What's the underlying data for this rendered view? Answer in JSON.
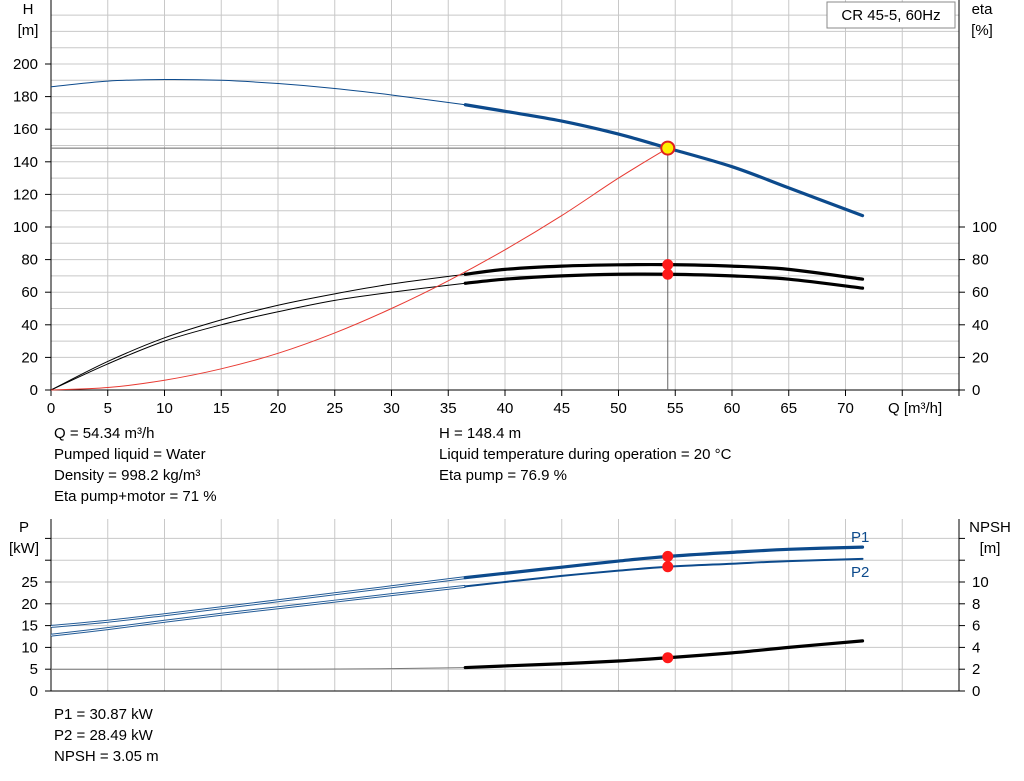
{
  "chart_data": [
    {
      "type": "line",
      "title": "CR 45-5, 60Hz",
      "xlabel": "Q [m³/h]",
      "xlim": [
        0,
        80
      ],
      "x_ticks": [
        0,
        5,
        10,
        15,
        20,
        25,
        30,
        35,
        40,
        45,
        50,
        55,
        60,
        65,
        70
      ],
      "left_axis": {
        "label_line1": "H",
        "label_line2": "[m]",
        "lim": [
          0,
          200
        ],
        "ticks": [
          0,
          20,
          40,
          60,
          80,
          100,
          120,
          140,
          160,
          180,
          200
        ]
      },
      "right_axis": {
        "label_line1": "eta",
        "label_line2": "[%]",
        "lim": [
          0,
          100
        ],
        "ticks": [
          0,
          20,
          40,
          60,
          80,
          100
        ]
      },
      "grid": true,
      "operating_point": {
        "Q": 54.34,
        "H": 148.4,
        "eta_pump": 76.9,
        "eta_total": 71
      },
      "series": [
        {
          "key": "H",
          "axis": "left",
          "color": "#0c4a8c",
          "x": [
            0,
            5,
            10,
            15,
            20,
            25,
            30,
            36.5,
            40,
            45,
            50,
            54.34,
            60,
            65,
            71.5
          ],
          "y": [
            186,
            189.5,
            190.5,
            190,
            188,
            185,
            181,
            175,
            171,
            165,
            157,
            148.4,
            137,
            124,
            107
          ]
        },
        {
          "key": "eta_pump",
          "axis": "right",
          "color": "#000000",
          "x": [
            0,
            5,
            10,
            15,
            20,
            25,
            30,
            36.5,
            40,
            45,
            50,
            54.34,
            60,
            65,
            71.5
          ],
          "y": [
            0,
            17.5,
            32,
            43,
            52,
            59,
            65,
            71,
            74,
            76,
            76.8,
            76.9,
            76,
            74,
            68
          ]
        },
        {
          "key": "eta_total",
          "axis": "right",
          "color": "#000000",
          "x": [
            0,
            5,
            10,
            15,
            20,
            25,
            30,
            36.5,
            40,
            45,
            50,
            54.34,
            60,
            65,
            71.5
          ],
          "y": [
            0,
            16,
            30,
            40,
            48,
            55,
            60,
            65.5,
            68,
            70,
            71,
            71,
            70,
            68,
            62.5
          ]
        },
        {
          "key": "system_curve",
          "axis": "left",
          "color": "#e83a32",
          "x": [
            0,
            5,
            10,
            15,
            20,
            25,
            30,
            35,
            40,
            45,
            50,
            54.34
          ],
          "y": [
            0,
            1.5,
            6,
            13,
            22.5,
            35,
            50,
            67,
            86,
            107,
            130,
            148.4
          ]
        }
      ]
    },
    {
      "type": "line",
      "xlim": [
        0,
        80
      ],
      "x_ticks": [
        0,
        5,
        10,
        15,
        20,
        25,
        30,
        35,
        40,
        45,
        50,
        55,
        60,
        65,
        70
      ],
      "left_axis": {
        "label_line1": "P",
        "label_line2": "[kW]",
        "lim": [
          0,
          35
        ],
        "ticks": [
          0,
          5,
          10,
          15,
          20,
          25
        ]
      },
      "right_axis": {
        "label_line1": "NPSH",
        "label_line2": "[m]",
        "lim": [
          0,
          14
        ],
        "ticks": [
          0,
          2,
          4,
          6,
          8,
          10
        ]
      },
      "grid": true,
      "operating_point": {
        "Q": 54.34,
        "P1": 30.87,
        "P2": 28.49,
        "NPSH": 3.05
      },
      "series": [
        {
          "key": "P1",
          "name": "P1",
          "axis": "left",
          "color": "#0c4a8c",
          "x": [
            0,
            5,
            10,
            15,
            20,
            25,
            30,
            36.5,
            40,
            45,
            50,
            54.34,
            60,
            65,
            71.5
          ],
          "y": [
            14.8,
            16,
            17.5,
            19.1,
            20.7,
            22.3,
            23.9,
            26,
            27,
            28.4,
            29.8,
            30.87,
            31.8,
            32.5,
            33
          ]
        },
        {
          "key": "P2",
          "name": "P2",
          "axis": "left",
          "color": "#0c4a8c",
          "x": [
            0,
            5,
            10,
            15,
            20,
            25,
            30,
            36.5,
            40,
            45,
            50,
            54.34,
            60,
            65,
            71.5
          ],
          "y": [
            12.8,
            14.3,
            16,
            17.6,
            19.1,
            20.6,
            22.1,
            24,
            25,
            26.4,
            27.6,
            28.49,
            29.2,
            29.8,
            30.3
          ]
        },
        {
          "key": "NPSH",
          "axis": "right",
          "color": "#000000",
          "x": [
            0,
            10,
            20,
            30,
            36.5,
            40,
            45,
            50,
            54.34,
            60,
            65,
            71.5
          ],
          "y": [
            2,
            2,
            2,
            2.05,
            2.15,
            2.3,
            2.5,
            2.75,
            3.05,
            3.5,
            4,
            4.6
          ]
        }
      ]
    }
  ],
  "info_top": {
    "col1": [
      "Q = 54.34 m³/h",
      "Pumped liquid = Water",
      "Density = 998.2 kg/m³",
      "Eta pump+motor = 71 %"
    ],
    "col2": [
      "H = 148.4 m",
      "Liquid temperature during operation = 20 °C",
      "Eta pump = 76.9 %"
    ]
  },
  "info_bottom": {
    "col1": [
      "P1 = 30.87 kW",
      "P2 = 28.49 kW",
      "NPSH = 3.05 m"
    ]
  },
  "colors": {
    "curve_blue": "#0c4a8c",
    "system_red": "#e83a32",
    "marker_red": "#ff1a1a",
    "marker_yellow": "#ffee00",
    "grid": "#c8c8c8"
  }
}
